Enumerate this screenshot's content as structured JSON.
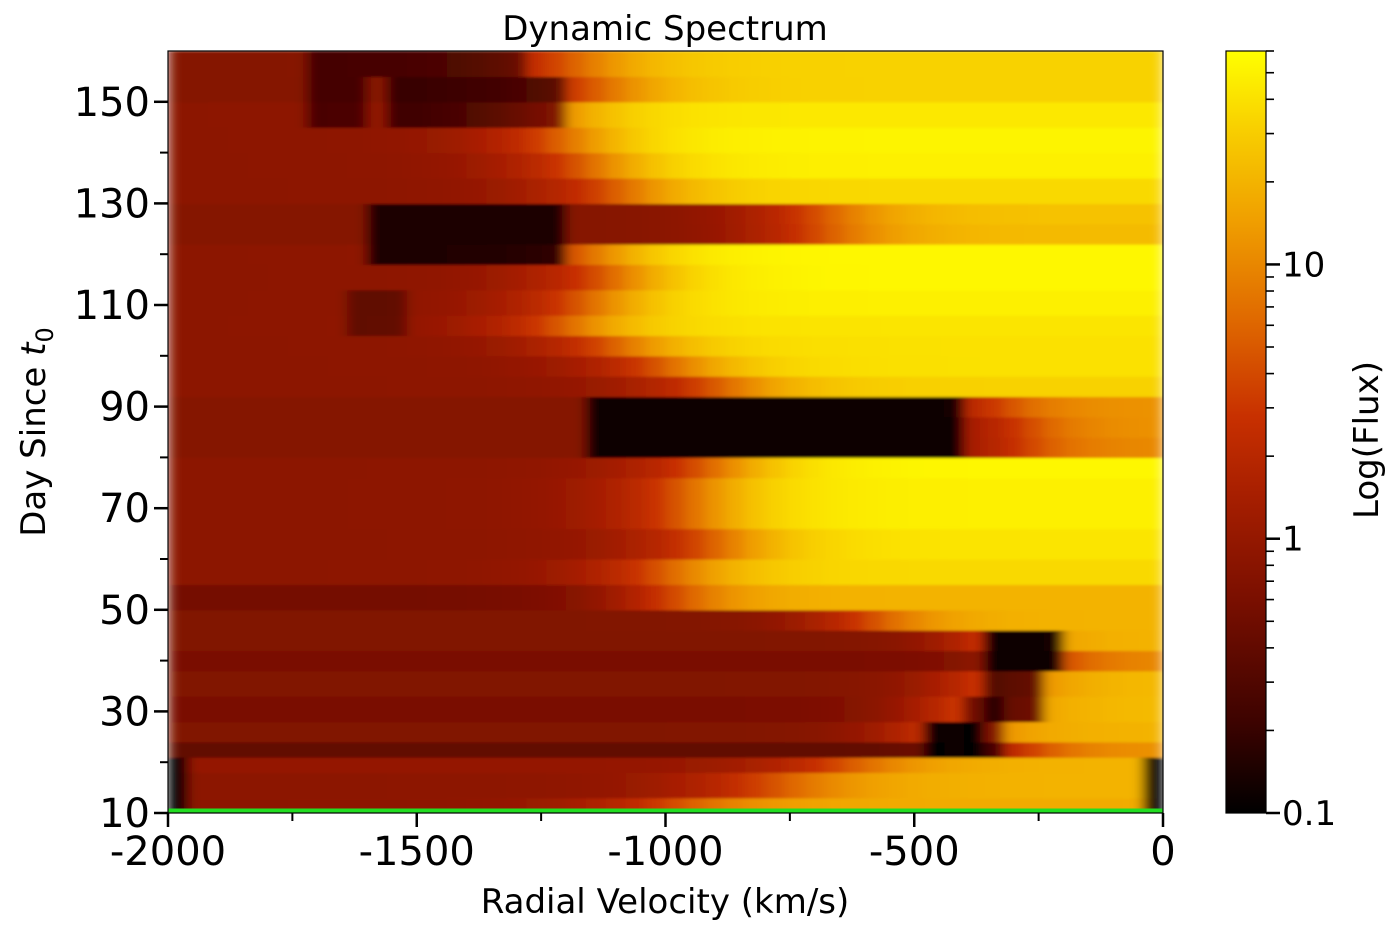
{
  "chart_data": {
    "type": "heatmap",
    "title": "Dynamic Spectrum",
    "xlabel": "Radial Velocity (km/s)",
    "ylabel_text": "Day Since ",
    "ylabel_var": "t",
    "ylabel_sub": "0",
    "xlim": [
      -2000,
      0
    ],
    "ylim": [
      10,
      160
    ],
    "x_ticks": [
      "-2000",
      "-1500",
      "-1000",
      "-500",
      "0"
    ],
    "x_tick_values": [
      -2000,
      -1500,
      -1000,
      -500,
      0
    ],
    "y_ticks": [
      "10",
      "30",
      "50",
      "70",
      "90",
      "110",
      "130",
      "150"
    ],
    "y_tick_values": [
      10,
      30,
      50,
      70,
      90,
      110,
      130,
      150
    ],
    "colorbar": {
      "label": "Log(Flux)",
      "scale": "log",
      "range": [
        0.1,
        60
      ],
      "ticks": [
        "0.1",
        "1",
        "10"
      ],
      "tick_values": [
        0.1,
        1,
        10
      ],
      "colormap": "hot"
    },
    "baseline_color": "#22dd22",
    "colors": [
      "#000000",
      "#3d0300",
      "#7a0f00",
      "#a81f00",
      "#c83000",
      "#e06a00",
      "#f0a000",
      "#f8d000",
      "#ffff00"
    ],
    "bands": [
      {
        "y0": 10,
        "y1": 13,
        "k": 0.3,
        "rise": -1000,
        "width": 400,
        "hi": 0.78
      },
      {
        "y0": 13,
        "y1": 18,
        "k": 0.3,
        "rise": -800,
        "width": 400,
        "hi": 0.8
      },
      {
        "y0": 18,
        "y1": 21,
        "k": 0.32,
        "rise": -650,
        "width": 350,
        "hi": 0.8
      },
      {
        "y0": 21,
        "y1": 24,
        "k": 0.2,
        "rise": -300,
        "width": 250,
        "hi": 0.72
      },
      {
        "y0": 24,
        "y1": 28,
        "k": 0.27,
        "rise": -450,
        "width": 300,
        "hi": 0.8
      },
      {
        "y0": 28,
        "y1": 33,
        "k": 0.25,
        "rise": -400,
        "width": 300,
        "hi": 0.82
      },
      {
        "y0": 33,
        "y1": 38,
        "k": 0.27,
        "rise": -350,
        "width": 300,
        "hi": 0.82
      },
      {
        "y0": 38,
        "y1": 42,
        "k": 0.25,
        "rise": -250,
        "width": 250,
        "hi": 0.7
      },
      {
        "y0": 42,
        "y1": 46,
        "k": 0.27,
        "rise": -350,
        "width": 250,
        "hi": 0.8
      },
      {
        "y0": 46,
        "y1": 50,
        "k": 0.27,
        "rise": -600,
        "width": 300,
        "hi": 0.8
      },
      {
        "y0": 50,
        "y1": 55,
        "k": 0.24,
        "rise": -1000,
        "width": 300,
        "hi": 0.8
      },
      {
        "y0": 55,
        "y1": 60,
        "k": 0.3,
        "rise": -1000,
        "width": 350,
        "hi": 0.9
      },
      {
        "y0": 60,
        "y1": 66,
        "k": 0.3,
        "rise": -900,
        "width": 350,
        "hi": 0.93
      },
      {
        "y0": 66,
        "y1": 72,
        "k": 0.3,
        "rise": -950,
        "width": 350,
        "hi": 0.96
      },
      {
        "y0": 72,
        "y1": 76,
        "k": 0.3,
        "rise": -950,
        "width": 350,
        "hi": 0.96
      },
      {
        "y0": 76,
        "y1": 80,
        "k": 0.3,
        "rise": -900,
        "width": 350,
        "hi": 0.98
      },
      {
        "y0": 80,
        "y1": 84,
        "k": 0.28,
        "rise": -300,
        "width": 250,
        "hi": 0.7
      },
      {
        "y0": 84,
        "y1": 88,
        "k": 0.28,
        "rise": -300,
        "width": 250,
        "hi": 0.72
      },
      {
        "y0": 88,
        "y1": 92,
        "k": 0.28,
        "rise": -350,
        "width": 250,
        "hi": 0.72
      },
      {
        "y0": 92,
        "y1": 96,
        "k": 0.3,
        "rise": -900,
        "width": 350,
        "hi": 0.88
      },
      {
        "y0": 96,
        "y1": 100,
        "k": 0.3,
        "rise": -1000,
        "width": 350,
        "hi": 0.92
      },
      {
        "y0": 100,
        "y1": 104,
        "k": 0.3,
        "rise": -1100,
        "width": 350,
        "hi": 0.92
      },
      {
        "y0": 104,
        "y1": 108,
        "k": 0.3,
        "rise": -1200,
        "width": 350,
        "hi": 0.93
      },
      {
        "y0": 108,
        "y1": 113,
        "k": 0.3,
        "rise": -1150,
        "width": 350,
        "hi": 0.96
      },
      {
        "y0": 113,
        "y1": 118,
        "k": 0.3,
        "rise": -1100,
        "width": 350,
        "hi": 0.98
      },
      {
        "y0": 118,
        "y1": 122,
        "k": 0.3,
        "rise": -1150,
        "width": 350,
        "hi": 0.98
      },
      {
        "y0": 122,
        "y1": 126,
        "k": 0.28,
        "rise": -700,
        "width": 350,
        "hi": 0.82
      },
      {
        "y0": 126,
        "y1": 130,
        "k": 0.28,
        "rise": -700,
        "width": 350,
        "hi": 0.84
      },
      {
        "y0": 130,
        "y1": 135,
        "k": 0.3,
        "rise": -1100,
        "width": 350,
        "hi": 0.9
      },
      {
        "y0": 135,
        "y1": 140,
        "k": 0.3,
        "rise": -1150,
        "width": 350,
        "hi": 0.96
      },
      {
        "y0": 140,
        "y1": 145,
        "k": 0.3,
        "rise": -1200,
        "width": 350,
        "hi": 0.97
      },
      {
        "y0": 145,
        "y1": 150,
        "k": 0.3,
        "rise": -1250,
        "width": 350,
        "hi": 0.94
      },
      {
        "y0": 150,
        "y1": 155,
        "k": 0.28,
        "rise": -1150,
        "width": 350,
        "hi": 0.88
      },
      {
        "y0": 155,
        "y1": 160,
        "k": 0.28,
        "rise": -1200,
        "width": 350,
        "hi": 0.88
      }
    ],
    "absorption": [
      {
        "x0": -1170,
        "x1": -400,
        "y0": 82,
        "y1": 92,
        "depth": 0.9
      },
      {
        "x0": -1600,
        "x1": -1200,
        "y0": 121,
        "y1": 130,
        "depth": 0.8
      },
      {
        "x0": -1560,
        "x1": -1200,
        "y0": 149,
        "y1": 155,
        "depth": 0.6
      },
      {
        "x0": -1700,
        "x1": -1620,
        "y0": 149,
        "y1": 155,
        "depth": 0.5
      },
      {
        "x0": -1650,
        "x1": -1520,
        "y0": 104,
        "y1": 110,
        "depth": 0.35
      },
      {
        "x0": -1700,
        "x1": -1300,
        "y0": 158,
        "y1": 160,
        "depth": 0.5
      },
      {
        "x0": -350,
        "x1": -220,
        "y0": 38,
        "y1": 43,
        "depth": 0.95
      },
      {
        "x0": -340,
        "x1": -260,
        "y0": 30,
        "y1": 38,
        "depth": 0.7
      },
      {
        "x0": -470,
        "x1": -380,
        "y0": 21,
        "y1": 26,
        "depth": 0.95
      },
      {
        "x0": -390,
        "x1": -340,
        "y0": 23,
        "y1": 30,
        "depth": 0.6
      },
      {
        "x0": -2000,
        "x1": -1960,
        "y0": 12,
        "y1": 20,
        "depth": 1.0
      },
      {
        "x0": -30,
        "x1": 0,
        "y0": 12,
        "y1": 21,
        "depth": 1.0
      }
    ]
  }
}
